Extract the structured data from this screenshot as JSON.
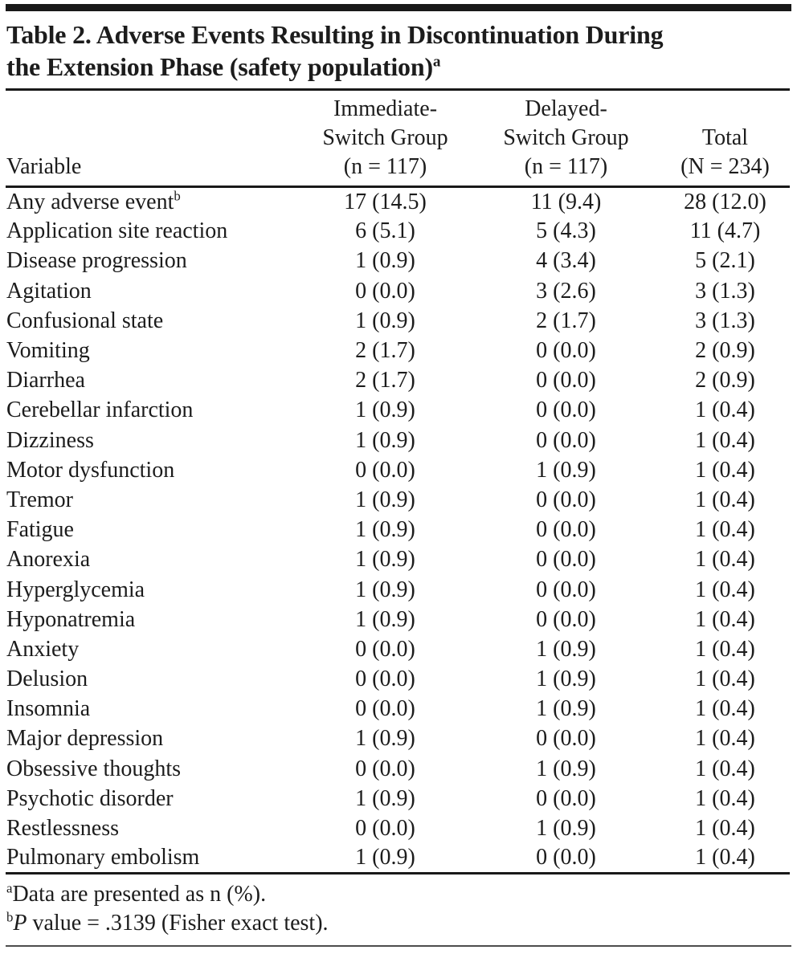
{
  "page": {
    "title_line1": "Table 2. Adverse Events Resulting in Discontinuation During",
    "title_line2": "the Extension Phase (safety population)",
    "title_sup": "a"
  },
  "header": {
    "variable_label": "Variable",
    "groups": [
      {
        "line1": "Immediate-",
        "line2": "Switch Group",
        "line3": "(n = 117)"
      },
      {
        "line1": "Delayed-",
        "line2": "Switch Group",
        "line3": "(n = 117)"
      },
      {
        "line1": "",
        "line2": "Total",
        "line3": "(N = 234)"
      }
    ]
  },
  "rows": [
    {
      "variable": "Any adverse event",
      "sup": "b",
      "immediate": "17 (14.5)",
      "delayed": "11 (9.4)",
      "total": "28 (12.0)"
    },
    {
      "variable": "Application site reaction",
      "sup": "",
      "immediate": "6 (5.1)",
      "delayed": "5 (4.3)",
      "total": "11 (4.7)"
    },
    {
      "variable": "Disease progression",
      "sup": "",
      "immediate": "1 (0.9)",
      "delayed": "4 (3.4)",
      "total": "5 (2.1)"
    },
    {
      "variable": "Agitation",
      "sup": "",
      "immediate": "0 (0.0)",
      "delayed": "3 (2.6)",
      "total": "3 (1.3)"
    },
    {
      "variable": "Confusional state",
      "sup": "",
      "immediate": "1 (0.9)",
      "delayed": "2 (1.7)",
      "total": "3 (1.3)"
    },
    {
      "variable": "Vomiting",
      "sup": "",
      "immediate": "2 (1.7)",
      "delayed": "0 (0.0)",
      "total": "2 (0.9)"
    },
    {
      "variable": "Diarrhea",
      "sup": "",
      "immediate": "2 (1.7)",
      "delayed": "0 (0.0)",
      "total": "2 (0.9)"
    },
    {
      "variable": "Cerebellar infarction",
      "sup": "",
      "immediate": "1 (0.9)",
      "delayed": "0 (0.0)",
      "total": "1 (0.4)"
    },
    {
      "variable": "Dizziness",
      "sup": "",
      "immediate": "1 (0.9)",
      "delayed": "0 (0.0)",
      "total": "1 (0.4)"
    },
    {
      "variable": "Motor dysfunction",
      "sup": "",
      "immediate": "0 (0.0)",
      "delayed": "1 (0.9)",
      "total": "1 (0.4)"
    },
    {
      "variable": "Tremor",
      "sup": "",
      "immediate": "1 (0.9)",
      "delayed": "0 (0.0)",
      "total": "1 (0.4)"
    },
    {
      "variable": "Fatigue",
      "sup": "",
      "immediate": "1 (0.9)",
      "delayed": "0 (0.0)",
      "total": "1 (0.4)"
    },
    {
      "variable": "Anorexia",
      "sup": "",
      "immediate": "1 (0.9)",
      "delayed": "0 (0.0)",
      "total": "1 (0.4)"
    },
    {
      "variable": "Hyperglycemia",
      "sup": "",
      "immediate": "1 (0.9)",
      "delayed": "0 (0.0)",
      "total": "1 (0.4)"
    },
    {
      "variable": "Hyponatremia",
      "sup": "",
      "immediate": "1 (0.9)",
      "delayed": "0 (0.0)",
      "total": "1 (0.4)"
    },
    {
      "variable": "Anxiety",
      "sup": "",
      "immediate": "0 (0.0)",
      "delayed": "1 (0.9)",
      "total": "1 (0.4)"
    },
    {
      "variable": "Delusion",
      "sup": "",
      "immediate": "0 (0.0)",
      "delayed": "1 (0.9)",
      "total": "1 (0.4)"
    },
    {
      "variable": "Insomnia",
      "sup": "",
      "immediate": "0 (0.0)",
      "delayed": "1 (0.9)",
      "total": "1 (0.4)"
    },
    {
      "variable": "Major depression",
      "sup": "",
      "immediate": "1 (0.9)",
      "delayed": "0 (0.0)",
      "total": "1 (0.4)"
    },
    {
      "variable": "Obsessive thoughts",
      "sup": "",
      "immediate": "0 (0.0)",
      "delayed": "1 (0.9)",
      "total": "1 (0.4)"
    },
    {
      "variable": "Psychotic disorder",
      "sup": "",
      "immediate": "1 (0.9)",
      "delayed": "0 (0.0)",
      "total": "1 (0.4)"
    },
    {
      "variable": "Restlessness",
      "sup": "",
      "immediate": "0 (0.0)",
      "delayed": "1 (0.9)",
      "total": "1 (0.4)"
    },
    {
      "variable": "Pulmonary embolism",
      "sup": "",
      "immediate": "1 (0.9)",
      "delayed": "0 (0.0)",
      "total": "1 (0.4)"
    }
  ],
  "footnotes": [
    {
      "marker": "a",
      "italic": "",
      "text": "Data are presented as n (%)."
    },
    {
      "marker": "b",
      "italic": "P",
      "text": " value = .3139 (Fisher exact test)."
    }
  ]
}
